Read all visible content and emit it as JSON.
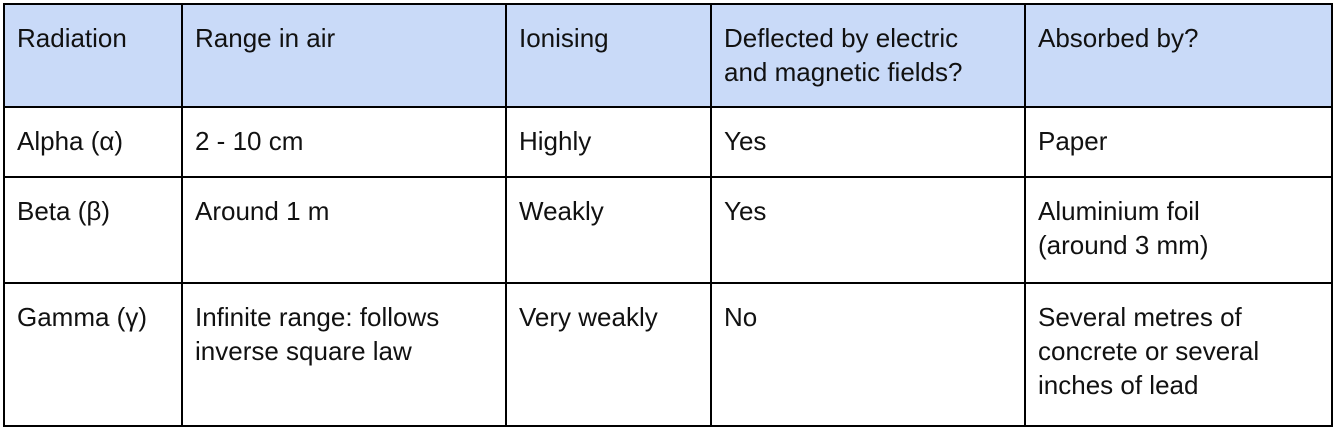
{
  "table": {
    "header": [
      "Radiation",
      "Range in air",
      "Ionising",
      [
        "Deflected by electric",
        "and magnetic fields?"
      ],
      "Absorbed by?"
    ],
    "rows": [
      [
        "Alpha (α)",
        "2 - 10 cm",
        "Highly",
        "Yes",
        "Paper"
      ],
      [
        "Beta (β)",
        "Around 1 m",
        "Weakly",
        "Yes",
        [
          "Aluminium foil",
          "(around 3 mm)"
        ]
      ],
      [
        "Gamma (γ)",
        [
          "Infinite range: follows",
          "inverse square law"
        ],
        "Very weakly",
        "No",
        [
          "Several metres of",
          "concrete or several",
          "inches of lead"
        ]
      ]
    ]
  }
}
